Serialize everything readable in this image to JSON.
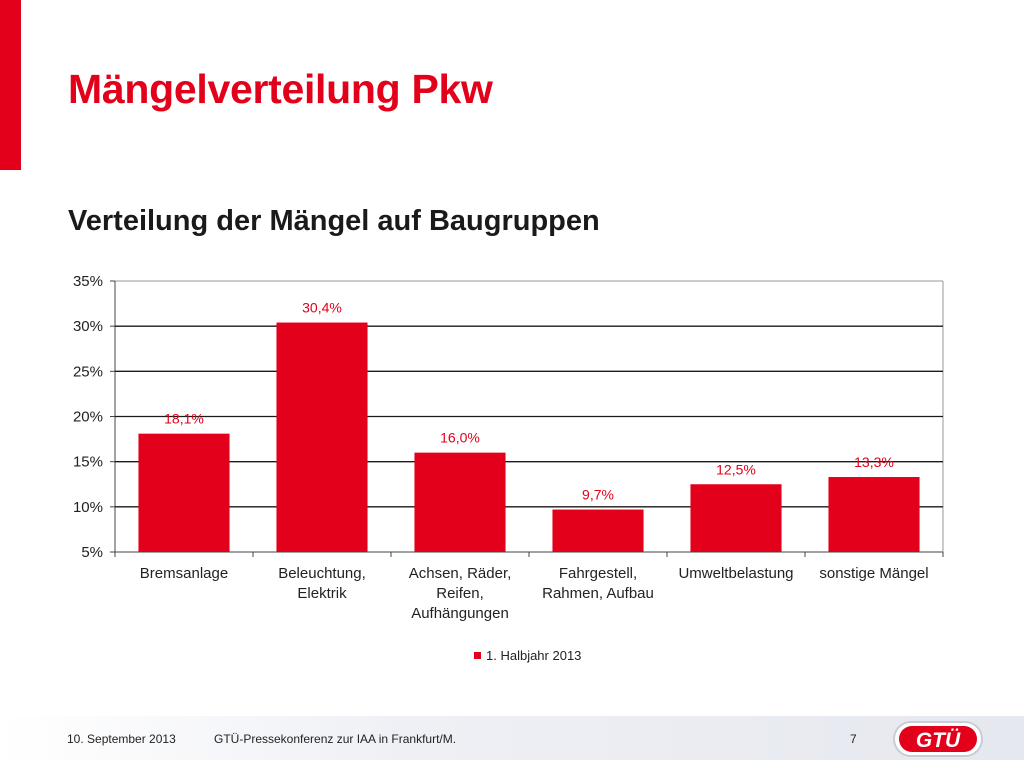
{
  "slide": {
    "title": "Mängelverteilung Pkw",
    "subtitle": "Verteilung der Mängel auf Baugruppen"
  },
  "colors": {
    "accent": "#e2001a",
    "grid": "#1a1a1a"
  },
  "chart_data": {
    "type": "bar",
    "categories": [
      [
        "Bremsanlage"
      ],
      [
        "Beleuchtung,",
        "Elektrik"
      ],
      [
        "Achsen, Räder,",
        "Reifen,",
        "Aufhängungen"
      ],
      [
        "Fahrgestell,",
        "Rahmen, Aufbau"
      ],
      [
        "Umweltbelastung"
      ],
      [
        "sonstige Mängel"
      ]
    ],
    "series": [
      {
        "name": "1. Halbjahr 2013",
        "values": [
          18.1,
          30.4,
          16.0,
          9.7,
          12.5,
          13.3
        ],
        "labels": [
          "18,1%",
          "30,4%",
          "16,0%",
          "9,7%",
          "12,5%",
          "13,3%"
        ]
      }
    ],
    "ylim": [
      5,
      35
    ],
    "yticks": [
      5,
      10,
      15,
      20,
      25,
      30,
      35
    ],
    "ytick_labels": [
      "5%",
      "10%",
      "15%",
      "20%",
      "25%",
      "30%",
      "35%"
    ],
    "grid": true,
    "legend_position": "bottom"
  },
  "footer": {
    "date": "10. September 2013",
    "event": "GTÜ-Pressekonferenz zur IAA in Frankfurt/M.",
    "page": "7",
    "logo_text": "GTÜ"
  }
}
